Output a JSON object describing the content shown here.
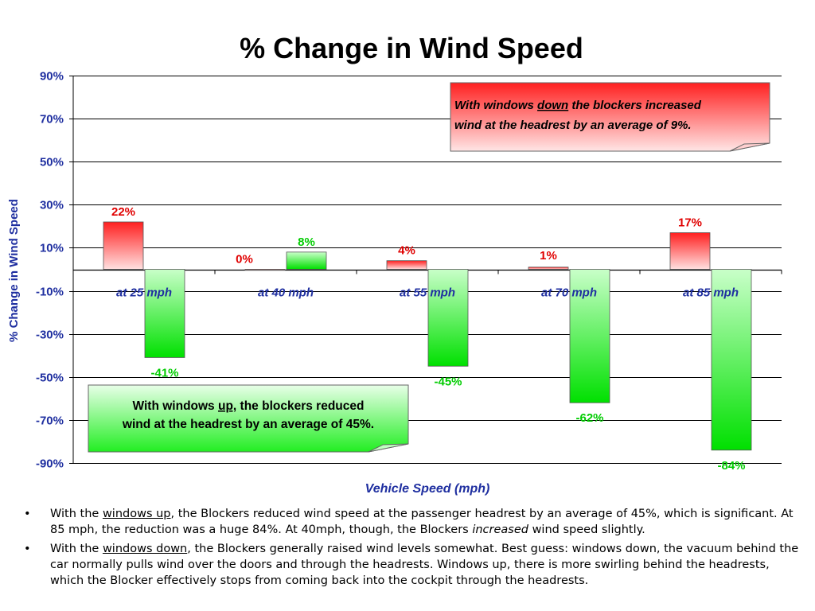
{
  "chart_data": {
    "type": "bar",
    "title": "% Change in Wind Speed",
    "xlabel": "Vehicle Speed (mph)",
    "ylabel": "% Change in Wind Speed",
    "ylim": [
      -90,
      90
    ],
    "yticks": [
      "90%",
      "70%",
      "50%",
      "30%",
      "10%",
      "-10%",
      "-30%",
      "-50%",
      "-70%",
      "-90%"
    ],
    "ytick_values": [
      90,
      70,
      50,
      30,
      10,
      -10,
      -30,
      -50,
      -70,
      -90
    ],
    "categories": [
      "at 25 mph",
      "at 40 mph",
      "at 55 mph",
      "at 70 mph",
      "at 85 mph"
    ],
    "grid": true,
    "series": [
      {
        "values": [
          22,
          0,
          4,
          1,
          17
        ],
        "labels": [
          "22%",
          "0%",
          "4%",
          "1%",
          "17%"
        ],
        "color": "#ff1a1a",
        "label_color": "#e00000"
      },
      {
        "values": [
          -41,
          8,
          -45,
          -62,
          -84
        ],
        "labels": [
          "-41%",
          "8%",
          "-45%",
          "-62%",
          "-84%"
        ],
        "color": "#00e000",
        "label_color": "#00cc00"
      }
    ],
    "annotations": [
      {
        "pre": "With windows ",
        "em": "down",
        "post": " the blockers increased",
        "line2": "wind at the headrest by an average of 9%.",
        "italic": true,
        "fill": "#ff3030"
      },
      {
        "pre": "With windows ",
        "em": "up,",
        "post": " the blockers reduced",
        "line2": "wind at the headrest by an average of 45%.",
        "italic": false,
        "fill": "#33ee33"
      }
    ]
  },
  "notes": [
    {
      "a": "With the ",
      "b": "windows up",
      "c": ", the Blockers reduced wind speed at the passenger headrest by an average of 45%, which is significant. At 85 mph, the reduction was a huge 84%. At 40mph, though, the Blockers ",
      "d": "increased",
      "e": " wind speed slightly."
    },
    {
      "a": "With the ",
      "b": "windows down",
      "c": ", the Blockers generally  raised wind levels somewhat. Best guess: windows down, the vacuum behind the car normally pulls wind over the doors and through the headrests. Windows up, there is more swirling behind the headrests, which the Blocker effectively stops from coming back into the cockpit through the headrests."
    }
  ]
}
